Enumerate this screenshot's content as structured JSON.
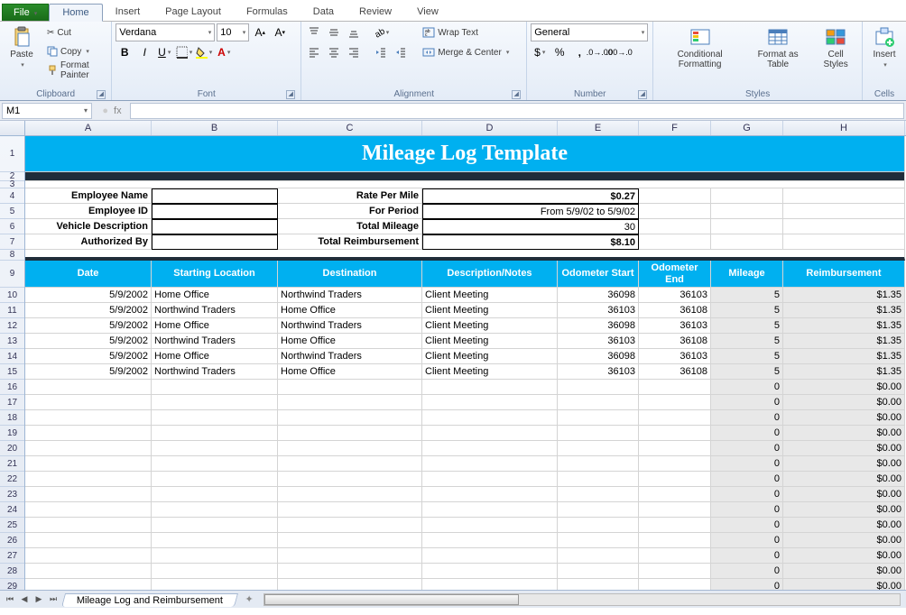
{
  "menubar": {
    "file": "File",
    "tabs": [
      "Home",
      "Insert",
      "Page Layout",
      "Formulas",
      "Data",
      "Review",
      "View"
    ],
    "active": "Home"
  },
  "ribbon": {
    "clipboard": {
      "paste": "Paste",
      "cut": "Cut",
      "copy": "Copy",
      "format_painter": "Format Painter",
      "label": "Clipboard"
    },
    "font": {
      "name": "Verdana",
      "size": "10",
      "label": "Font"
    },
    "alignment": {
      "wrap": "Wrap Text",
      "merge": "Merge & Center",
      "label": "Alignment"
    },
    "number": {
      "format": "General",
      "label": "Number"
    },
    "styles": {
      "cond": "Conditional\nFormatting",
      "table": "Format\nas Table",
      "cell": "Cell\nStyles",
      "label": "Styles"
    },
    "cells": {
      "insert": "Insert",
      "label": "Cells"
    }
  },
  "namebox": "M1",
  "fx": "fx",
  "columns": [
    {
      "letter": "A",
      "width": 140
    },
    {
      "letter": "B",
      "width": 140
    },
    {
      "letter": "C",
      "width": 160
    },
    {
      "letter": "D",
      "width": 150
    },
    {
      "letter": "E",
      "width": 90
    },
    {
      "letter": "F",
      "width": 80
    },
    {
      "letter": "G",
      "width": 80
    },
    {
      "letter": "H",
      "width": 135
    }
  ],
  "title_banner": {
    "text": "Mileage Log Template",
    "bg": "#00b0f0",
    "color": "#ffffff",
    "fontsize": 24,
    "border_bottom": "#1f2d3a"
  },
  "form": {
    "left_labels": [
      "Employee Name",
      "Employee ID",
      "Vehicle Description",
      "Authorized By"
    ],
    "right_labels": [
      "Rate Per Mile",
      "For Period",
      "Total Mileage",
      "Total Reimbursement"
    ],
    "right_values": [
      "$0.27",
      "From 5/9/02 to 5/9/02",
      "30",
      "$8.10"
    ]
  },
  "table": {
    "header_bg": "#00b0f0",
    "header_color": "#ffffff",
    "headers": [
      "Date",
      "Starting Location",
      "Destination",
      "Description/Notes",
      "Odometer Start",
      "Odometer End",
      "Mileage",
      "Reimbursement"
    ],
    "rows": [
      [
        "5/9/2002",
        "Home Office",
        "Northwind Traders",
        "Client Meeting",
        "36098",
        "36103",
        "5",
        "$1.35"
      ],
      [
        "5/9/2002",
        "Northwind Traders",
        "Home Office",
        "Client Meeting",
        "36103",
        "36108",
        "5",
        "$1.35"
      ],
      [
        "5/9/2002",
        "Home Office",
        "Northwind Traders",
        "Client Meeting",
        "36098",
        "36103",
        "5",
        "$1.35"
      ],
      [
        "5/9/2002",
        "Northwind Traders",
        "Home Office",
        "Client Meeting",
        "36103",
        "36108",
        "5",
        "$1.35"
      ],
      [
        "5/9/2002",
        "Home Office",
        "Northwind Traders",
        "Client Meeting",
        "36098",
        "36103",
        "5",
        "$1.35"
      ],
      [
        "5/9/2002",
        "Northwind Traders",
        "Home Office",
        "Client Meeting",
        "36103",
        "36108",
        "5",
        "$1.35"
      ]
    ],
    "empty_row": [
      "",
      "",
      "",
      "",
      "",
      "",
      "0",
      "$0.00"
    ],
    "empty_count": 16,
    "calc_bg": "#e8e8e8"
  },
  "row_heights": {
    "header": 17,
    "banner": 40,
    "divider": 10,
    "form": 17,
    "tblhead": 30,
    "data": 17
  },
  "sheet_tab": "Mileage Log and Reimbursement"
}
